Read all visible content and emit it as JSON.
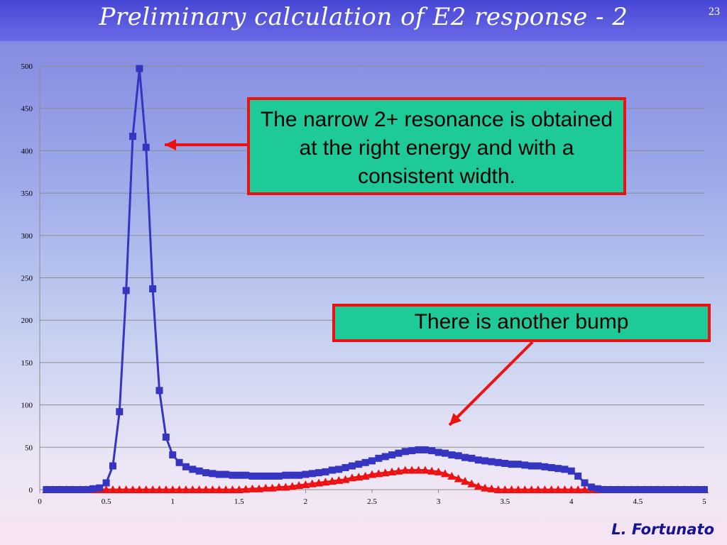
{
  "slide": {
    "title": "Preliminary calculation of E2 response - 2",
    "number": "23",
    "author": "L. Fortunato"
  },
  "callouts": {
    "first": "The narrow 2+ resonance is obtained at the right energy and with a consistent width.",
    "second": "There is another bump"
  },
  "colors": {
    "blue_series": "#3535c2",
    "red_series": "#ee1111",
    "callout_fill": "#1ecb98",
    "callout_border": "#ee1111",
    "grid": "#8c8c8c"
  },
  "chart_data": {
    "type": "scatter",
    "title": "",
    "xlabel": "",
    "ylabel": "",
    "xlim": [
      0,
      5
    ],
    "ylim": [
      0,
      500
    ],
    "x_ticks": [
      "0",
      "0.5",
      "1",
      "1.5",
      "2",
      "2.5",
      "3",
      "3.5",
      "4",
      "4.5",
      "5"
    ],
    "y_ticks": [
      "0",
      "50",
      "100",
      "150",
      "200",
      "250",
      "300",
      "350",
      "400",
      "450",
      "500"
    ],
    "grid": "horizontal",
    "legend": "none",
    "series": [
      {
        "marker": "square",
        "color": "#3535c2",
        "x": [
          0.05,
          0.1,
          0.15,
          0.2,
          0.25,
          0.3,
          0.35,
          0.4,
          0.45,
          0.5,
          0.55,
          0.6,
          0.65,
          0.7,
          0.75,
          0.8,
          0.85,
          0.9,
          0.95,
          1.0,
          1.05,
          1.1,
          1.15,
          1.2,
          1.25,
          1.3,
          1.35,
          1.4,
          1.45,
          1.5,
          1.55,
          1.6,
          1.65,
          1.7,
          1.75,
          1.8,
          1.85,
          1.9,
          1.95,
          2.0,
          2.05,
          2.1,
          2.15,
          2.2,
          2.25,
          2.3,
          2.35,
          2.4,
          2.45,
          2.5,
          2.55,
          2.6,
          2.65,
          2.7,
          2.75,
          2.8,
          2.85,
          2.9,
          2.95,
          3.0,
          3.05,
          3.1,
          3.15,
          3.2,
          3.25,
          3.3,
          3.35,
          3.4,
          3.45,
          3.5,
          3.55,
          3.6,
          3.65,
          3.7,
          3.75,
          3.8,
          3.85,
          3.9,
          3.95,
          4.0,
          4.05,
          4.1,
          4.15,
          4.2,
          4.25,
          4.3,
          4.35,
          4.4,
          4.45,
          4.5,
          4.55,
          4.6,
          4.65,
          4.7,
          4.75,
          4.8,
          4.85,
          4.9,
          4.95,
          5.0
        ],
        "y": [
          0,
          0,
          0,
          0,
          0,
          0,
          0,
          1,
          2,
          8,
          28,
          92,
          235,
          417,
          497,
          404,
          237,
          117,
          62,
          41,
          32,
          27,
          24,
          22,
          20,
          19,
          18,
          18,
          17,
          17,
          17,
          16,
          16,
          16,
          16,
          16,
          17,
          17,
          17,
          18,
          19,
          20,
          21,
          23,
          24,
          26,
          28,
          30,
          32,
          34,
          37,
          39,
          41,
          43,
          45,
          46,
          47,
          47,
          46,
          44,
          43,
          41,
          40,
          38,
          37,
          35,
          34,
          33,
          32,
          31,
          30,
          30,
          29,
          28,
          28,
          27,
          26,
          25,
          24,
          22,
          16,
          8,
          3,
          1,
          0,
          0,
          0,
          0,
          0,
          0,
          0,
          0,
          0,
          0,
          0,
          0,
          0,
          0,
          0,
          0
        ]
      },
      {
        "marker": "triangle",
        "color": "#ee1111",
        "x": [
          0.05,
          0.1,
          0.15,
          0.2,
          0.25,
          0.3,
          0.35,
          0.4,
          0.45,
          0.5,
          0.55,
          0.6,
          0.65,
          0.7,
          0.75,
          0.8,
          0.85,
          0.9,
          0.95,
          1.0,
          1.05,
          1.1,
          1.15,
          1.2,
          1.25,
          1.3,
          1.35,
          1.4,
          1.45,
          1.5,
          1.55,
          1.6,
          1.65,
          1.7,
          1.75,
          1.8,
          1.85,
          1.9,
          1.95,
          2.0,
          2.05,
          2.1,
          2.15,
          2.2,
          2.25,
          2.3,
          2.35,
          2.4,
          2.45,
          2.5,
          2.55,
          2.6,
          2.65,
          2.7,
          2.75,
          2.8,
          2.85,
          2.9,
          2.95,
          3.0,
          3.05,
          3.1,
          3.15,
          3.2,
          3.25,
          3.3,
          3.35,
          3.4,
          3.45,
          3.5,
          3.55,
          3.6,
          3.65,
          3.7,
          3.75,
          3.8,
          3.85,
          3.9,
          3.95,
          4.0,
          4.05,
          4.1,
          4.15,
          4.2,
          4.25,
          4.3,
          4.35,
          4.4,
          4.45,
          4.5,
          4.55,
          4.6,
          4.65,
          4.7,
          4.75,
          4.8,
          4.85,
          4.9,
          4.95,
          5.0
        ],
        "y": [
          0,
          0,
          0,
          0,
          0,
          0,
          0,
          0,
          0,
          0,
          0,
          0,
          0,
          0,
          0,
          0,
          0,
          0,
          0,
          0,
          0,
          0,
          0,
          0,
          0,
          0,
          0,
          0,
          0,
          0,
          0.5,
          1,
          1,
          2,
          2,
          3,
          3,
          4,
          5,
          6,
          7,
          8,
          9,
          10,
          11,
          12,
          14,
          15,
          16,
          18,
          19,
          20,
          21,
          22,
          23,
          23,
          23,
          23,
          22,
          21,
          19,
          16,
          13,
          10,
          7,
          4,
          2,
          1,
          0,
          0,
          0,
          0,
          0,
          0,
          0,
          0,
          0,
          0,
          0,
          0,
          0,
          0,
          0,
          0,
          0,
          0,
          0,
          0,
          0,
          0,
          0,
          0,
          0,
          0,
          0,
          0,
          0,
          0,
          0,
          0
        ]
      }
    ]
  }
}
